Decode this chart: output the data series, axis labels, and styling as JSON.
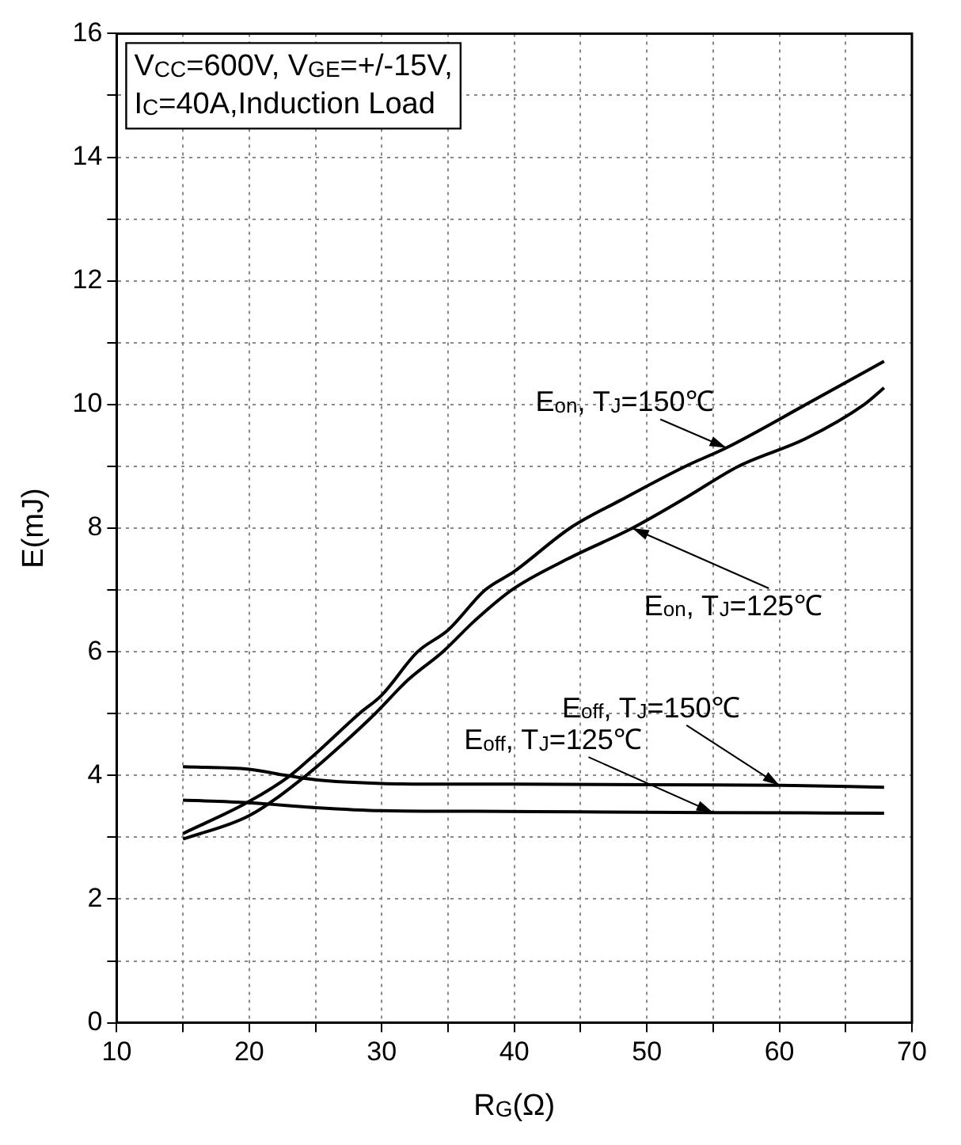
{
  "chart_data": {
    "type": "line",
    "xlabel": "R$_{G}$(Ω)",
    "ylabel": "E(mJ)",
    "annotations": [
      "V$_{CC}$=600V, V$_{GE}$=+/-15V, I$_{C}$=40A,Induction Load"
    ],
    "xlim": [
      10,
      70
    ],
    "xticks": [
      10,
      {
        "value": 15,
        "label": null
      },
      20,
      {
        "value": 25,
        "label": null
      },
      30,
      {
        "value": 35,
        "label": null
      },
      40,
      {
        "value": 45,
        "label": null
      },
      50,
      {
        "value": 55,
        "label": null
      },
      60,
      {
        "value": 65,
        "label": null
      },
      70
    ],
    "ylim": [
      0,
      16
    ],
    "yticks": [
      0,
      {
        "value": 1,
        "label": null
      },
      2,
      {
        "value": 3,
        "label": null
      },
      4,
      {
        "value": 5,
        "label": null
      },
      6,
      {
        "value": 7,
        "label": null
      },
      8,
      {
        "value": 9,
        "label": null
      },
      10,
      {
        "value": 11,
        "label": null
      },
      12,
      {
        "value": 13,
        "label": null
      },
      14,
      {
        "value": 15,
        "label": null
      },
      16
    ],
    "grid": true,
    "legend": false,
    "marker": "none",
    "line_style": "solid",
    "series": [
      {
        "name": "E$_{on}$, T$_{J}$=150℃",
        "color": "#000000",
        "x": [
          15,
          20,
          23.1,
          25,
          28.3,
          30,
          32.7,
          35,
          37.8,
          40,
          44.2,
          48,
          52.9,
          56,
          62,
          67.9
        ],
        "values": [
          3.06,
          3.58,
          4,
          4.35,
          5,
          5.3,
          6,
          6.35,
          7,
          7.3,
          8,
          8.45,
          9,
          9.3,
          10,
          10.7
        ]
      },
      {
        "name": "E$_{on}$, T$_{J}$=125℃",
        "color": "#000000",
        "x": [
          15,
          20,
          24.3,
          27,
          29.5,
          32,
          34.6,
          37,
          39.8,
          44,
          48.9,
          53,
          56.9,
          62,
          66.4,
          67.9
        ],
        "values": [
          2.97,
          3.35,
          4,
          4.5,
          5,
          5.55,
          6,
          6.5,
          7,
          7.5,
          8,
          8.5,
          9,
          9.45,
          10,
          10.27
        ]
      },
      {
        "name": "E$_{off}$, T$_{J}$=150℃",
        "color": "#000000",
        "x": [
          15,
          20,
          22.8,
          25,
          30,
          35,
          40,
          50,
          60,
          67.9
        ],
        "values": [
          4.14,
          4.1,
          4,
          3.93,
          3.87,
          3.86,
          3.86,
          3.85,
          3.84,
          3.81
        ]
      },
      {
        "name": "E$_{off}$, T$_{J}$=125℃",
        "color": "#000000",
        "x": [
          15,
          20,
          25,
          30,
          37,
          45,
          55,
          67.9
        ],
        "values": [
          3.6,
          3.56,
          3.48,
          3.43,
          3.42,
          3.41,
          3.4,
          3.39
        ]
      }
    ]
  }
}
